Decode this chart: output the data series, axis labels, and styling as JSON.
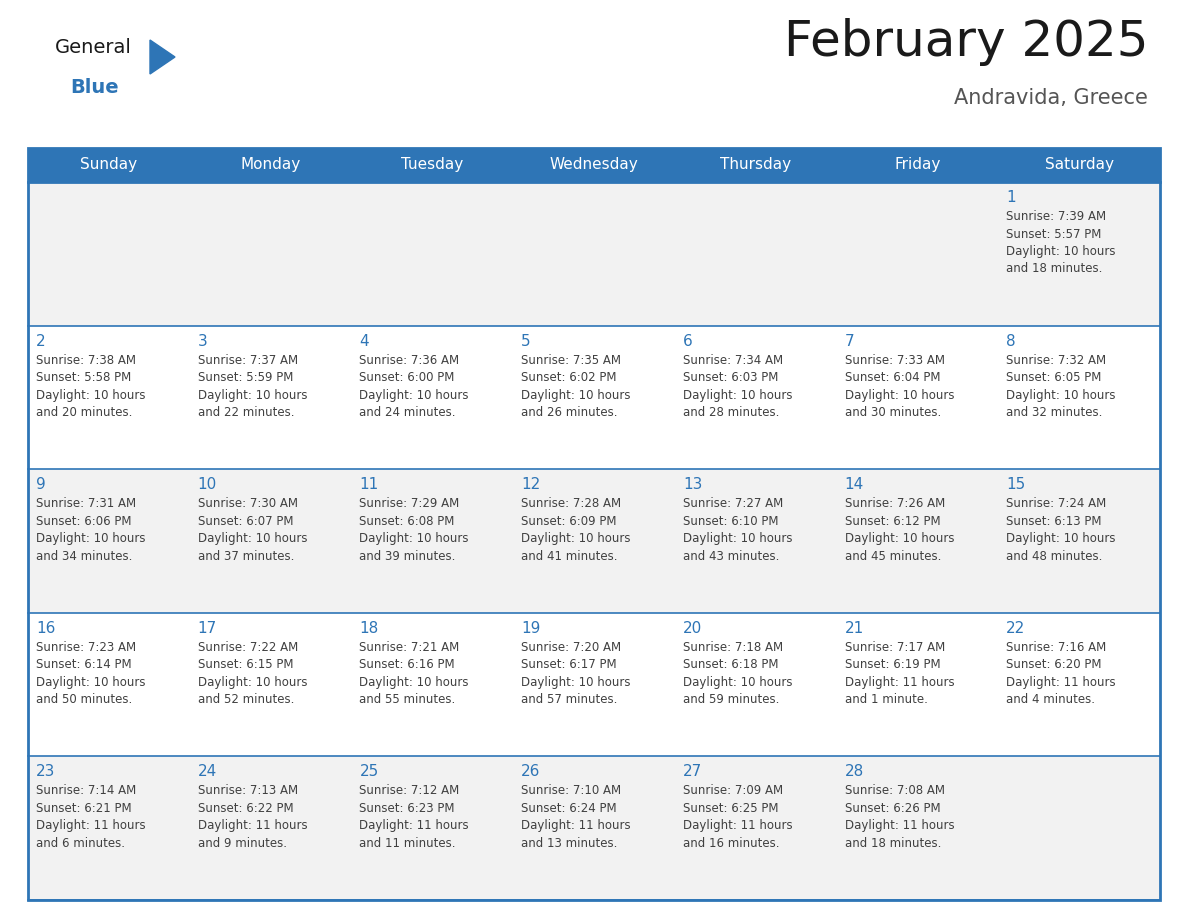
{
  "title": "February 2025",
  "subtitle": "Andravida, Greece",
  "days_of_week": [
    "Sunday",
    "Monday",
    "Tuesday",
    "Wednesday",
    "Thursday",
    "Friday",
    "Saturday"
  ],
  "header_bg": "#2E75B6",
  "header_text": "#FFFFFF",
  "cell_bg_odd": "#F2F2F2",
  "cell_bg_even": "#FFFFFF",
  "border_color": "#2E75B6",
  "day_number_color": "#2E75B6",
  "cell_text_color": "#404040",
  "title_color": "#1a1a1a",
  "subtitle_color": "#555555",
  "logo_general_color": "#1a1a1a",
  "logo_blue_color": "#2E75B6",
  "weeks": [
    {
      "days": [
        {
          "day": null,
          "sunrise": null,
          "sunset": null,
          "daylight": null
        },
        {
          "day": null,
          "sunrise": null,
          "sunset": null,
          "daylight": null
        },
        {
          "day": null,
          "sunrise": null,
          "sunset": null,
          "daylight": null
        },
        {
          "day": null,
          "sunrise": null,
          "sunset": null,
          "daylight": null
        },
        {
          "day": null,
          "sunrise": null,
          "sunset": null,
          "daylight": null
        },
        {
          "day": null,
          "sunrise": null,
          "sunset": null,
          "daylight": null
        },
        {
          "day": 1,
          "sunrise": "7:39 AM",
          "sunset": "5:57 PM",
          "daylight": "10 hours\nand 18 minutes."
        }
      ]
    },
    {
      "days": [
        {
          "day": 2,
          "sunrise": "7:38 AM",
          "sunset": "5:58 PM",
          "daylight": "10 hours\nand 20 minutes."
        },
        {
          "day": 3,
          "sunrise": "7:37 AM",
          "sunset": "5:59 PM",
          "daylight": "10 hours\nand 22 minutes."
        },
        {
          "day": 4,
          "sunrise": "7:36 AM",
          "sunset": "6:00 PM",
          "daylight": "10 hours\nand 24 minutes."
        },
        {
          "day": 5,
          "sunrise": "7:35 AM",
          "sunset": "6:02 PM",
          "daylight": "10 hours\nand 26 minutes."
        },
        {
          "day": 6,
          "sunrise": "7:34 AM",
          "sunset": "6:03 PM",
          "daylight": "10 hours\nand 28 minutes."
        },
        {
          "day": 7,
          "sunrise": "7:33 AM",
          "sunset": "6:04 PM",
          "daylight": "10 hours\nand 30 minutes."
        },
        {
          "day": 8,
          "sunrise": "7:32 AM",
          "sunset": "6:05 PM",
          "daylight": "10 hours\nand 32 minutes."
        }
      ]
    },
    {
      "days": [
        {
          "day": 9,
          "sunrise": "7:31 AM",
          "sunset": "6:06 PM",
          "daylight": "10 hours\nand 34 minutes."
        },
        {
          "day": 10,
          "sunrise": "7:30 AM",
          "sunset": "6:07 PM",
          "daylight": "10 hours\nand 37 minutes."
        },
        {
          "day": 11,
          "sunrise": "7:29 AM",
          "sunset": "6:08 PM",
          "daylight": "10 hours\nand 39 minutes."
        },
        {
          "day": 12,
          "sunrise": "7:28 AM",
          "sunset": "6:09 PM",
          "daylight": "10 hours\nand 41 minutes."
        },
        {
          "day": 13,
          "sunrise": "7:27 AM",
          "sunset": "6:10 PM",
          "daylight": "10 hours\nand 43 minutes."
        },
        {
          "day": 14,
          "sunrise": "7:26 AM",
          "sunset": "6:12 PM",
          "daylight": "10 hours\nand 45 minutes."
        },
        {
          "day": 15,
          "sunrise": "7:24 AM",
          "sunset": "6:13 PM",
          "daylight": "10 hours\nand 48 minutes."
        }
      ]
    },
    {
      "days": [
        {
          "day": 16,
          "sunrise": "7:23 AM",
          "sunset": "6:14 PM",
          "daylight": "10 hours\nand 50 minutes."
        },
        {
          "day": 17,
          "sunrise": "7:22 AM",
          "sunset": "6:15 PM",
          "daylight": "10 hours\nand 52 minutes."
        },
        {
          "day": 18,
          "sunrise": "7:21 AM",
          "sunset": "6:16 PM",
          "daylight": "10 hours\nand 55 minutes."
        },
        {
          "day": 19,
          "sunrise": "7:20 AM",
          "sunset": "6:17 PM",
          "daylight": "10 hours\nand 57 minutes."
        },
        {
          "day": 20,
          "sunrise": "7:18 AM",
          "sunset": "6:18 PM",
          "daylight": "10 hours\nand 59 minutes."
        },
        {
          "day": 21,
          "sunrise": "7:17 AM",
          "sunset": "6:19 PM",
          "daylight": "11 hours\nand 1 minute."
        },
        {
          "day": 22,
          "sunrise": "7:16 AM",
          "sunset": "6:20 PM",
          "daylight": "11 hours\nand 4 minutes."
        }
      ]
    },
    {
      "days": [
        {
          "day": 23,
          "sunrise": "7:14 AM",
          "sunset": "6:21 PM",
          "daylight": "11 hours\nand 6 minutes."
        },
        {
          "day": 24,
          "sunrise": "7:13 AM",
          "sunset": "6:22 PM",
          "daylight": "11 hours\nand 9 minutes."
        },
        {
          "day": 25,
          "sunrise": "7:12 AM",
          "sunset": "6:23 PM",
          "daylight": "11 hours\nand 11 minutes."
        },
        {
          "day": 26,
          "sunrise": "7:10 AM",
          "sunset": "6:24 PM",
          "daylight": "11 hours\nand 13 minutes."
        },
        {
          "day": 27,
          "sunrise": "7:09 AM",
          "sunset": "6:25 PM",
          "daylight": "11 hours\nand 16 minutes."
        },
        {
          "day": 28,
          "sunrise": "7:08 AM",
          "sunset": "6:26 PM",
          "daylight": "11 hours\nand 18 minutes."
        },
        {
          "day": null,
          "sunrise": null,
          "sunset": null,
          "daylight": null
        }
      ]
    }
  ]
}
